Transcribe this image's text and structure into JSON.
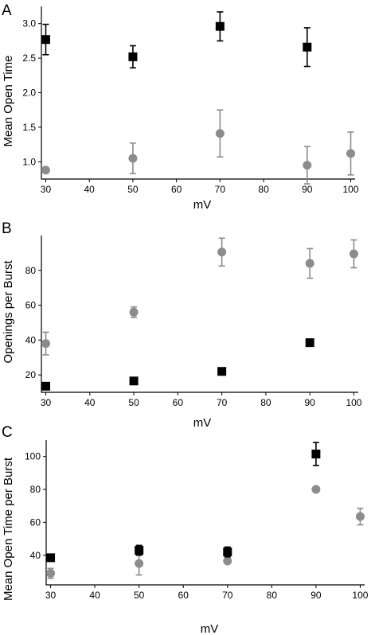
{
  "colors": {
    "black": "#000000",
    "gray": "#8c8c8c"
  },
  "chart_data": [
    {
      "type": "scatter",
      "panel_label": "A",
      "xlabel": "mV",
      "ylabel": "Mean Open Time",
      "xlim": [
        29,
        101
      ],
      "ylim": [
        0.75,
        3.25
      ],
      "xticks": [
        30,
        40,
        50,
        60,
        70,
        80,
        90,
        100
      ],
      "yticks": [
        1.0,
        1.5,
        2.0,
        2.5,
        3.0
      ],
      "ytick_labels": [
        "1.0",
        "1.5",
        "2.0",
        "2.5",
        "3.0"
      ],
      "grid": false,
      "series": [
        {
          "marker": "square",
          "color": "#000000",
          "x": [
            30,
            50,
            70,
            90
          ],
          "y": [
            2.77,
            2.52,
            2.96,
            2.66
          ],
          "err": [
            0.22,
            0.16,
            0.21,
            0.28
          ]
        },
        {
          "marker": "circle",
          "color": "#8c8c8c",
          "x": [
            30,
            50,
            70,
            90,
            100
          ],
          "y": [
            0.88,
            1.05,
            1.41,
            0.95,
            1.12
          ],
          "err": [
            0,
            0.22,
            0.34,
            0.27,
            0.31
          ]
        }
      ]
    },
    {
      "type": "scatter",
      "panel_label": "B",
      "xlabel": "mV",
      "ylabel": "Openings per Burst",
      "xlim": [
        29,
        101
      ],
      "ylim": [
        10,
        100
      ],
      "xticks": [
        30,
        40,
        50,
        60,
        70,
        80,
        90,
        100
      ],
      "yticks": [
        20,
        40,
        60,
        80
      ],
      "ytick_labels": [
        "20",
        "40",
        "60",
        "80"
      ],
      "grid": false,
      "series": [
        {
          "marker": "square",
          "color": "#000000",
          "x": [
            30,
            50,
            70,
            90
          ],
          "y": [
            13.5,
            16.5,
            22,
            38.5
          ],
          "err": [
            0,
            0,
            0,
            0
          ]
        },
        {
          "marker": "circle",
          "color": "#8c8c8c",
          "x": [
            30,
            50,
            70,
            90,
            100
          ],
          "y": [
            38,
            56,
            90.5,
            84,
            89.5
          ],
          "err": [
            6.5,
            3,
            8,
            8.5,
            8
          ]
        }
      ]
    },
    {
      "type": "scatter",
      "panel_label": "C",
      "xlabel": "mV",
      "ylabel": "Mean Open Time per Burst",
      "xlim": [
        29,
        101
      ],
      "ylim": [
        22,
        110
      ],
      "xticks": [
        30,
        40,
        50,
        60,
        70,
        80,
        90,
        100
      ],
      "yticks": [
        40,
        60,
        80,
        100
      ],
      "ytick_labels": [
        "40",
        "60",
        "80",
        "100"
      ],
      "grid": false,
      "series": [
        {
          "marker": "square",
          "color": "#000000",
          "x": [
            30,
            50,
            70,
            90
          ],
          "y": [
            38.5,
            43,
            42,
            101.5
          ],
          "err": [
            0,
            3,
            3,
            7
          ]
        },
        {
          "marker": "circle",
          "color": "#8c8c8c",
          "x": [
            30,
            50,
            70,
            90,
            100
          ],
          "y": [
            29,
            35,
            36.5,
            80,
            63.5
          ],
          "err": [
            3,
            7,
            0,
            0,
            5
          ]
        }
      ]
    }
  ]
}
